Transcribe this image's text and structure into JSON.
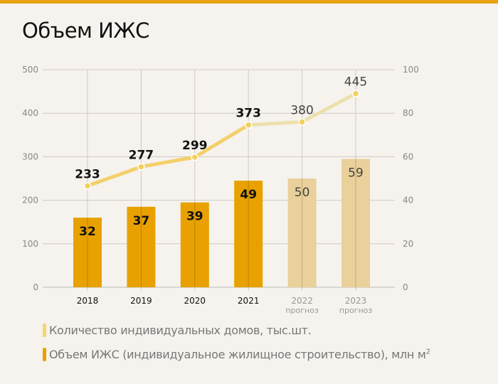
{
  "title": "Объем ИЖС",
  "colors": {
    "accent": "#e8a313",
    "bar": "#e8a100",
    "bar_forecast": "#ead09a",
    "line": "#f3d06a",
    "line_forecast": "#ede0ac",
    "point": "#f3cf5c"
  },
  "chart_data": {
    "type": "bar+line",
    "title": "Объем ИЖС",
    "categories": [
      "2018",
      "2019",
      "2020",
      "2021",
      "2022",
      "2023"
    ],
    "category_sublabels": [
      "",
      "",
      "",
      "",
      "прогноз",
      "прогноз"
    ],
    "forecast": [
      false,
      false,
      false,
      false,
      true,
      true
    ],
    "series": [
      {
        "name": "Количество индивидуальных домов, тыс.шт.",
        "type": "line",
        "axis": "left",
        "values": [
          233,
          277,
          299,
          373,
          380,
          445
        ]
      },
      {
        "name": "Объем ИЖС (индивидуальное жилищное строительство), млн м",
        "name_sup": "2",
        "type": "bar",
        "axis": "right",
        "values": [
          32,
          37,
          39,
          49,
          50,
          59
        ]
      }
    ],
    "left_axis": {
      "ylim": [
        0,
        500
      ],
      "ticks": [
        "0",
        "100",
        "200",
        "300",
        "400",
        "500"
      ]
    },
    "right_axis": {
      "ylim": [
        0,
        100
      ],
      "ticks": [
        "0",
        "20",
        "40",
        "60",
        "80",
        "100"
      ]
    },
    "grid": true,
    "legend": "bottom-left"
  }
}
